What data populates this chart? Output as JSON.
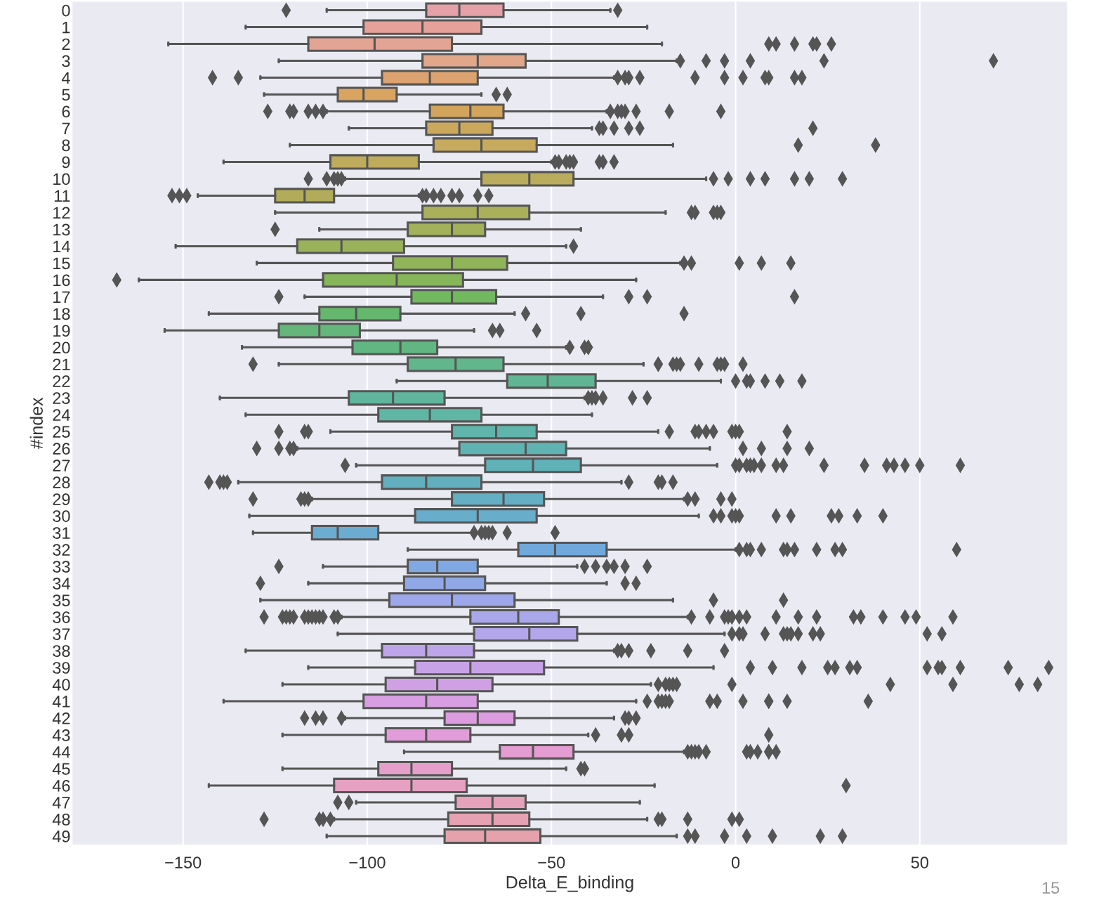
{
  "chart_data": {
    "type": "box",
    "orientation": "horizontal",
    "xlabel": "Delta_E_binding",
    "ylabel": "#index",
    "categories": [
      "0",
      "1",
      "2",
      "3",
      "4",
      "5",
      "6",
      "7",
      "8",
      "9",
      "10",
      "11",
      "12",
      "13",
      "14",
      "15",
      "16",
      "17",
      "18",
      "19",
      "20",
      "21",
      "22",
      "23",
      "24",
      "25",
      "26",
      "27",
      "28",
      "29",
      "30",
      "31",
      "32",
      "33",
      "34",
      "35",
      "36",
      "37",
      "38",
      "39",
      "40",
      "41",
      "42",
      "43",
      "44",
      "45",
      "46",
      "47",
      "48",
      "49"
    ],
    "boxes": [
      {
        "low": -111,
        "q1": -84,
        "median": -75,
        "q3": -63,
        "high": -34,
        "outliers": [
          -122,
          -32
        ]
      },
      {
        "low": -133,
        "q1": -101,
        "median": -85,
        "q3": -69,
        "high": -24
      },
      {
        "low": -154,
        "q1": -116,
        "median": -98,
        "q3": -77,
        "high": -20,
        "outliers": [
          9,
          11,
          16,
          21,
          22,
          26
        ]
      },
      {
        "low": -124,
        "q1": -85,
        "median": -70,
        "q3": -57,
        "high": -16,
        "outliers": [
          -15,
          -8,
          -3,
          4,
          24,
          70
        ]
      },
      {
        "low": -129,
        "q1": -96,
        "median": -83,
        "q3": -70,
        "high": -33,
        "outliers": [
          -142,
          -135,
          -32,
          -30,
          -29,
          -26,
          -11,
          -3,
          2,
          8,
          9,
          16,
          18
        ]
      },
      {
        "low": -128,
        "q1": -108,
        "median": -101,
        "q3": -92,
        "high": -69,
        "outliers": [
          -65,
          -62
        ]
      },
      {
        "low": -111,
        "q1": -83,
        "median": -72,
        "q3": -63,
        "high": -35,
        "outliers": [
          -127,
          -121,
          -120,
          -116,
          -114,
          -112,
          -34,
          -32,
          -31,
          -30,
          -27,
          -18,
          -4
        ]
      },
      {
        "low": -105,
        "q1": -84,
        "median": -75,
        "q3": -66,
        "high": -39,
        "outliers": [
          -37,
          -36,
          -33,
          -29,
          -26,
          21
        ]
      },
      {
        "low": -121,
        "q1": -82,
        "median": -69,
        "q3": -54,
        "high": -17,
        "outliers": [
          17,
          38
        ]
      },
      {
        "low": -139,
        "q1": -110,
        "median": -100,
        "q3": -86,
        "high": -50,
        "outliers": [
          -49,
          -48,
          -46,
          -45,
          -44,
          -37,
          -36,
          -33
        ]
      },
      {
        "low": -106,
        "q1": -69,
        "median": -56,
        "q3": -44,
        "high": -8,
        "outliers": [
          -116,
          -111,
          -109,
          -108,
          -107,
          -6,
          -2,
          4,
          8,
          16,
          20,
          29
        ]
      },
      {
        "low": -146,
        "q1": -125,
        "median": -117,
        "q3": -109,
        "high": -86,
        "outliers": [
          -153,
          -151,
          -149,
          -85,
          -84,
          -82,
          -80,
          -77,
          -75,
          -70,
          -67
        ]
      },
      {
        "low": -125,
        "q1": -85,
        "median": -70,
        "q3": -56,
        "high": -19,
        "outliers": [
          -12,
          -11,
          -6,
          -5,
          -4
        ]
      },
      {
        "low": -113,
        "q1": -89,
        "median": -77,
        "q3": -68,
        "high": -42,
        "outliers": [
          -125
        ]
      },
      {
        "low": -152,
        "q1": -119,
        "median": -107,
        "q3": -90,
        "high": -46,
        "outliers": [
          -44
        ]
      },
      {
        "low": -130,
        "q1": -93,
        "median": -77,
        "q3": -62,
        "high": -15,
        "outliers": [
          -14,
          -12,
          1,
          7,
          15
        ]
      },
      {
        "low": -162,
        "q1": -112,
        "median": -92,
        "q3": -74,
        "high": -27,
        "outliers": [
          -168
        ]
      },
      {
        "low": -117,
        "q1": -88,
        "median": -77,
        "q3": -65,
        "high": -36,
        "outliers": [
          -124,
          -29,
          -24,
          16
        ]
      },
      {
        "low": -143,
        "q1": -113,
        "median": -103,
        "q3": -91,
        "high": -60,
        "outliers": [
          -57,
          -42,
          -14
        ]
      },
      {
        "low": -155,
        "q1": -124,
        "median": -113,
        "q3": -102,
        "high": -71,
        "outliers": [
          -66,
          -64,
          -54
        ]
      },
      {
        "low": -134,
        "q1": -104,
        "median": -91,
        "q3": -81,
        "high": -46,
        "outliers": [
          -45,
          -41,
          -40,
          -40
        ]
      },
      {
        "low": -124,
        "q1": -89,
        "median": -76,
        "q3": -63,
        "high": -25,
        "outliers": [
          -131,
          -21,
          -21,
          -17,
          -16,
          -15,
          -10,
          -5,
          -4,
          -3,
          2
        ]
      },
      {
        "low": -92,
        "q1": -62,
        "median": -51,
        "q3": -38,
        "high": -4,
        "outliers": [
          0,
          3,
          4,
          8,
          12,
          18
        ]
      },
      {
        "low": -140,
        "q1": -105,
        "median": -93,
        "q3": -79,
        "high": -41,
        "outliers": [
          -40,
          -39,
          -38,
          -36,
          -28,
          -24
        ]
      },
      {
        "low": -133,
        "q1": -97,
        "median": -83,
        "q3": -69,
        "high": -39
      },
      {
        "low": -110,
        "q1": -77,
        "median": -65,
        "q3": -54,
        "high": -21,
        "outliers": [
          -124,
          -117,
          -116,
          -18,
          -11,
          -10,
          -8,
          -6,
          -1,
          0,
          1,
          14
        ]
      },
      {
        "low": -119,
        "q1": -75,
        "median": -57,
        "q3": -46,
        "high": -7,
        "outliers": [
          -130,
          -124,
          -121,
          -120,
          2,
          7,
          14,
          20
        ]
      },
      {
        "low": -103,
        "q1": -68,
        "median": -55,
        "q3": -42,
        "high": -5,
        "outliers": [
          -106,
          0,
          1,
          3,
          4,
          5,
          7,
          11,
          13,
          24,
          35,
          41,
          43,
          46,
          50,
          61
        ]
      },
      {
        "low": -135,
        "q1": -96,
        "median": -84,
        "q3": -69,
        "high": -31,
        "outliers": [
          -143,
          -140,
          -139,
          -138,
          -29,
          -21,
          -20,
          -17
        ]
      },
      {
        "low": -115,
        "q1": -77,
        "median": -63,
        "q3": -52,
        "high": -14,
        "outliers": [
          -131,
          -118,
          -117,
          -116,
          -13,
          -11,
          -4,
          -1
        ]
      },
      {
        "low": -132,
        "q1": -87,
        "median": -70,
        "q3": -54,
        "high": -10,
        "outliers": [
          -6,
          -4,
          -1,
          0,
          1,
          11,
          15,
          26,
          28,
          33,
          40
        ]
      },
      {
        "low": -131,
        "q1": -115,
        "median": -108,
        "q3": -97,
        "high": -71,
        "outliers": [
          -71,
          -69,
          -68,
          -67,
          -66,
          -62,
          -49
        ]
      },
      {
        "low": -89,
        "q1": -59,
        "median": -49,
        "q3": -35,
        "high": 0,
        "outliers": [
          1,
          3,
          4,
          7,
          13,
          14,
          16,
          22,
          27,
          29,
          60
        ]
      },
      {
        "low": -112,
        "q1": -89,
        "median": -81,
        "q3": -70,
        "high": -43,
        "outliers": [
          -124,
          -41,
          -38,
          -35,
          -33,
          -30,
          -24
        ]
      },
      {
        "low": -116,
        "q1": -90,
        "median": -79,
        "q3": -68,
        "high": -35,
        "outliers": [
          -129,
          -30,
          -27
        ]
      },
      {
        "low": -129,
        "q1": -94,
        "median": -77,
        "q3": -60,
        "high": -17,
        "outliers": [
          -6,
          13
        ]
      },
      {
        "low": -107,
        "q1": -72,
        "median": -59,
        "q3": -48,
        "high": -13,
        "outliers": [
          -128,
          -123,
          -122,
          -121,
          -120,
          -117,
          -116,
          -115,
          -114,
          -113,
          -112,
          -109,
          -108,
          -12,
          -7,
          -3,
          -2,
          -1,
          1,
          3,
          11,
          17,
          22,
          32,
          34,
          40,
          46,
          49,
          59
        ]
      },
      {
        "low": -108,
        "q1": -71,
        "median": -56,
        "q3": -43,
        "high": -3,
        "outliers": [
          -1,
          1,
          2,
          8,
          13,
          14,
          15,
          17,
          21,
          23,
          52,
          56
        ]
      },
      {
        "low": -133,
        "q1": -96,
        "median": -84,
        "q3": -71,
        "high": -33,
        "outliers": [
          -32,
          -31,
          -29,
          -23,
          -13,
          -3
        ]
      },
      {
        "low": -116,
        "q1": -87,
        "median": -72,
        "q3": -52,
        "high": -6,
        "outliers": [
          4,
          10,
          18,
          25,
          27,
          31,
          33,
          52,
          55,
          56,
          61,
          74,
          85
        ]
      },
      {
        "low": -123,
        "q1": -95,
        "median": -81,
        "q3": -66,
        "high": -23,
        "outliers": [
          -21,
          -19,
          -18,
          -17,
          -16,
          -1,
          42,
          59,
          77,
          82
        ]
      },
      {
        "low": -139,
        "q1": -101,
        "median": -84,
        "q3": -70,
        "high": -27,
        "outliers": [
          -24,
          -21,
          -20,
          -19,
          -18,
          -7,
          -5,
          2,
          9,
          9,
          14,
          36
        ]
      },
      {
        "low": -106,
        "q1": -79,
        "median": -70,
        "q3": -60,
        "high": -33,
        "outliers": [
          -117,
          -114,
          -112,
          -107,
          -30,
          -29,
          -27
        ]
      },
      {
        "low": -123,
        "q1": -95,
        "median": -84,
        "q3": -72,
        "high": -40,
        "outliers": [
          -38,
          -31,
          -29,
          9
        ]
      },
      {
        "low": -90,
        "q1": -64,
        "median": -55,
        "q3": -44,
        "high": -14,
        "outliers": [
          -13,
          -12,
          -11,
          -10,
          -8,
          3,
          4,
          6,
          9,
          9,
          11
        ]
      },
      {
        "low": -123,
        "q1": -97,
        "median": -88,
        "q3": -77,
        "high": -46,
        "outliers": [
          -42,
          -41
        ]
      },
      {
        "low": -143,
        "q1": -109,
        "median": -88,
        "q3": -73,
        "high": -22,
        "outliers": [
          30
        ]
      },
      {
        "low": -103,
        "q1": -76,
        "median": -66,
        "q3": -57,
        "high": -26,
        "outliers": [
          -108,
          -105
        ]
      },
      {
        "low": -109,
        "q1": -78,
        "median": -66,
        "q3": -56,
        "high": -24,
        "outliers": [
          -128,
          -113,
          -112,
          -110,
          -21,
          -20,
          -13,
          -1,
          1
        ]
      },
      {
        "low": -111,
        "q1": -79,
        "median": -68,
        "q3": -53,
        "high": -16,
        "outliers": [
          -13,
          -11,
          -3,
          3,
          10,
          23,
          29
        ]
      }
    ],
    "colors": [
      "#e6a0a8",
      "#e6a29a",
      "#e4a494",
      "#e2a68a",
      "#dca270",
      "#d9a460",
      "#d2a45c",
      "#cca85c",
      "#c6aa5e",
      "#bfab5c",
      "#b9ac5c",
      "#b2ac5a",
      "#aab05a",
      "#a3b15a",
      "#9ab25a",
      "#90b45a",
      "#86b55a",
      "#72b85e",
      "#66b76e",
      "#64b67a",
      "#62b682",
      "#62b68c",
      "#60b694",
      "#60b69c",
      "#60b6a4",
      "#60b4ac",
      "#5fb3b2",
      "#60b2b8",
      "#62b0bf",
      "#64afc4",
      "#68adca",
      "#6cabd2",
      "#70a8dc",
      "#80a8e2",
      "#90a8e6",
      "#9ca8ea",
      "#aaa8ea",
      "#b4a6ea",
      "#bea4e8",
      "#c8a2e6",
      "#d0a0e4",
      "#d89ee2",
      "#de9ce0",
      "#e29cda",
      "#e49cd2",
      "#e69eca",
      "#e6a0c2",
      "#e6a2ba",
      "#e6a2b2",
      "#e6a2ac"
    ],
    "xlim": [
      -180,
      90
    ],
    "xticks": [
      {
        "value": -150,
        "label": "−150"
      },
      {
        "value": -100,
        "label": "−100"
      },
      {
        "value": -50,
        "label": "−50"
      },
      0,
      50
    ],
    "grid": "x",
    "marker": "diamond",
    "annotations": [
      "15"
    ]
  }
}
